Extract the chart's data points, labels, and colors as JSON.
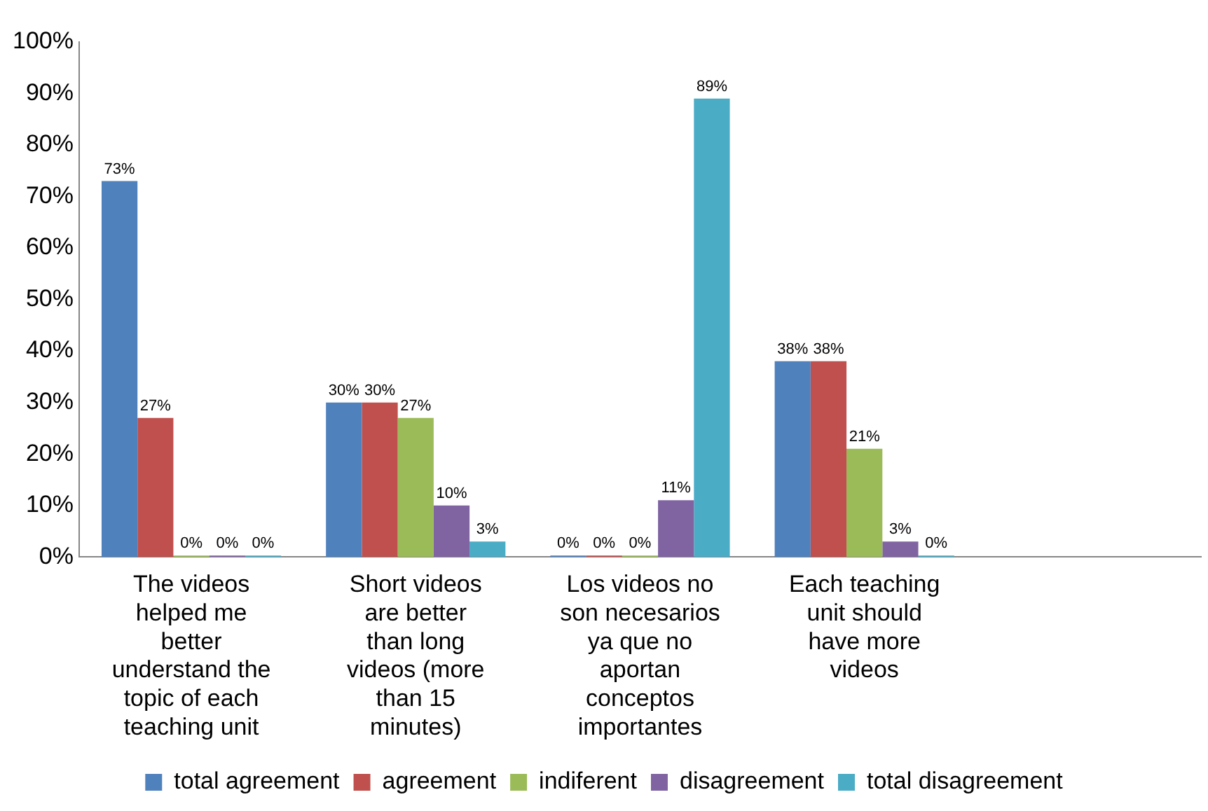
{
  "chart_data": {
    "type": "bar",
    "categories": [
      "The videos helped me better understand the topic of each teaching unit",
      "Short videos are better than long videos (more than 15 minutes)",
      "Los videos no son necesarios ya que no aportan conceptos importantes",
      "Each teaching unit should have more videos",
      null
    ],
    "series": [
      {
        "name": "total agreement",
        "color": "#4f81bd",
        "values": [
          73,
          30,
          0,
          38,
          null
        ],
        "value_labels": [
          "73%",
          "30%",
          "0%",
          "38%",
          null
        ]
      },
      {
        "name": "agreement",
        "color": "#c0504d",
        "values": [
          27,
          30,
          0,
          38,
          null
        ],
        "value_labels": [
          "27%",
          "30%",
          "0%",
          "38%",
          null
        ]
      },
      {
        "name": "indiferent",
        "color": "#9bbb59",
        "values": [
          0,
          27,
          0,
          21,
          null
        ],
        "value_labels": [
          "0%",
          "27%",
          "0%",
          "21%",
          null
        ]
      },
      {
        "name": "disagreement",
        "color": "#8064a2",
        "values": [
          0,
          10,
          11,
          3,
          null
        ],
        "value_labels": [
          "0%",
          "10%",
          "11%",
          "3%",
          null
        ]
      },
      {
        "name": "total disagreement",
        "color": "#4bacc6",
        "values": [
          0,
          3,
          89,
          0,
          null
        ],
        "value_labels": [
          "0%",
          "3%",
          "89%",
          "0%",
          null
        ]
      }
    ],
    "ylim": [
      0,
      100
    ],
    "yticks": [
      {
        "value": 0,
        "label": "0%"
      },
      {
        "value": 10,
        "label": "10%"
      },
      {
        "value": 20,
        "label": "20%"
      },
      {
        "value": 30,
        "label": "30%"
      },
      {
        "value": 40,
        "label": "40%"
      },
      {
        "value": 50,
        "label": "50%"
      },
      {
        "value": 60,
        "label": "60%"
      },
      {
        "value": 70,
        "label": "70%"
      },
      {
        "value": 80,
        "label": "80%"
      },
      {
        "value": 90,
        "label": "90%"
      },
      {
        "value": 100,
        "label": "100%"
      }
    ],
    "grid": false,
    "legend": "bottom"
  }
}
